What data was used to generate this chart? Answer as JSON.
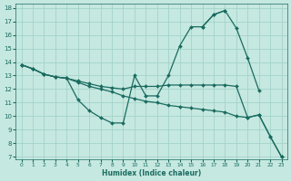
{
  "xlabel": "Humidex (Indice chaleur)",
  "bg_color": "#c5e8e0",
  "grid_color": "#9ecfc5",
  "line_color": "#1a6b60",
  "xlim": [
    -0.5,
    23.5
  ],
  "ylim": [
    6.8,
    18.3
  ],
  "xticks": [
    0,
    1,
    2,
    3,
    4,
    5,
    6,
    7,
    8,
    9,
    10,
    11,
    12,
    13,
    14,
    15,
    16,
    17,
    18,
    19,
    20,
    21,
    22,
    23
  ],
  "yticks": [
    7,
    8,
    9,
    10,
    11,
    12,
    13,
    14,
    15,
    16,
    17,
    18
  ],
  "line1_x": [
    0,
    1,
    2,
    3,
    4,
    5,
    6,
    7,
    8,
    9,
    10,
    11,
    12,
    13,
    14,
    15,
    16,
    17,
    18
  ],
  "line1_y": [
    13.8,
    13.5,
    13.1,
    12.9,
    12.8,
    11.2,
    10.4,
    9.9,
    9.5,
    9.5,
    13.0,
    11.5,
    11.5,
    13.0,
    15.2,
    16.6,
    16.6,
    17.5,
    17.8
  ],
  "line2_x": [
    0,
    1,
    2,
    3,
    4,
    5,
    6,
    7,
    8,
    9,
    10,
    11,
    12,
    13,
    14,
    15,
    16,
    17,
    18,
    19,
    20,
    21,
    22,
    23
  ],
  "line2_y": [
    13.8,
    13.5,
    13.1,
    12.9,
    12.8,
    12.6,
    12.4,
    12.2,
    12.1,
    12.0,
    12.2,
    12.2,
    12.2,
    12.3,
    12.3,
    12.3,
    12.3,
    12.3,
    12.3,
    12.2,
    9.9,
    10.1,
    8.5,
    7.0
  ],
  "line3_x": [
    0,
    1,
    2,
    3,
    4,
    5,
    6,
    7,
    8,
    9,
    10,
    11,
    12,
    13,
    14,
    15,
    16,
    17,
    18,
    19,
    20,
    21,
    22,
    23
  ],
  "line3_y": [
    13.8,
    13.5,
    13.1,
    12.9,
    12.8,
    12.5,
    12.2,
    12.0,
    11.8,
    11.5,
    11.3,
    11.1,
    11.0,
    10.8,
    10.7,
    10.6,
    10.5,
    10.4,
    10.3,
    10.0,
    9.9,
    10.1,
    8.5,
    7.0
  ],
  "line4_x": [
    16,
    17,
    18,
    19,
    20,
    21,
    22,
    23
  ],
  "line4_y": [
    16.6,
    17.5,
    17.8,
    16.5,
    14.3,
    11.9,
    null,
    null
  ]
}
